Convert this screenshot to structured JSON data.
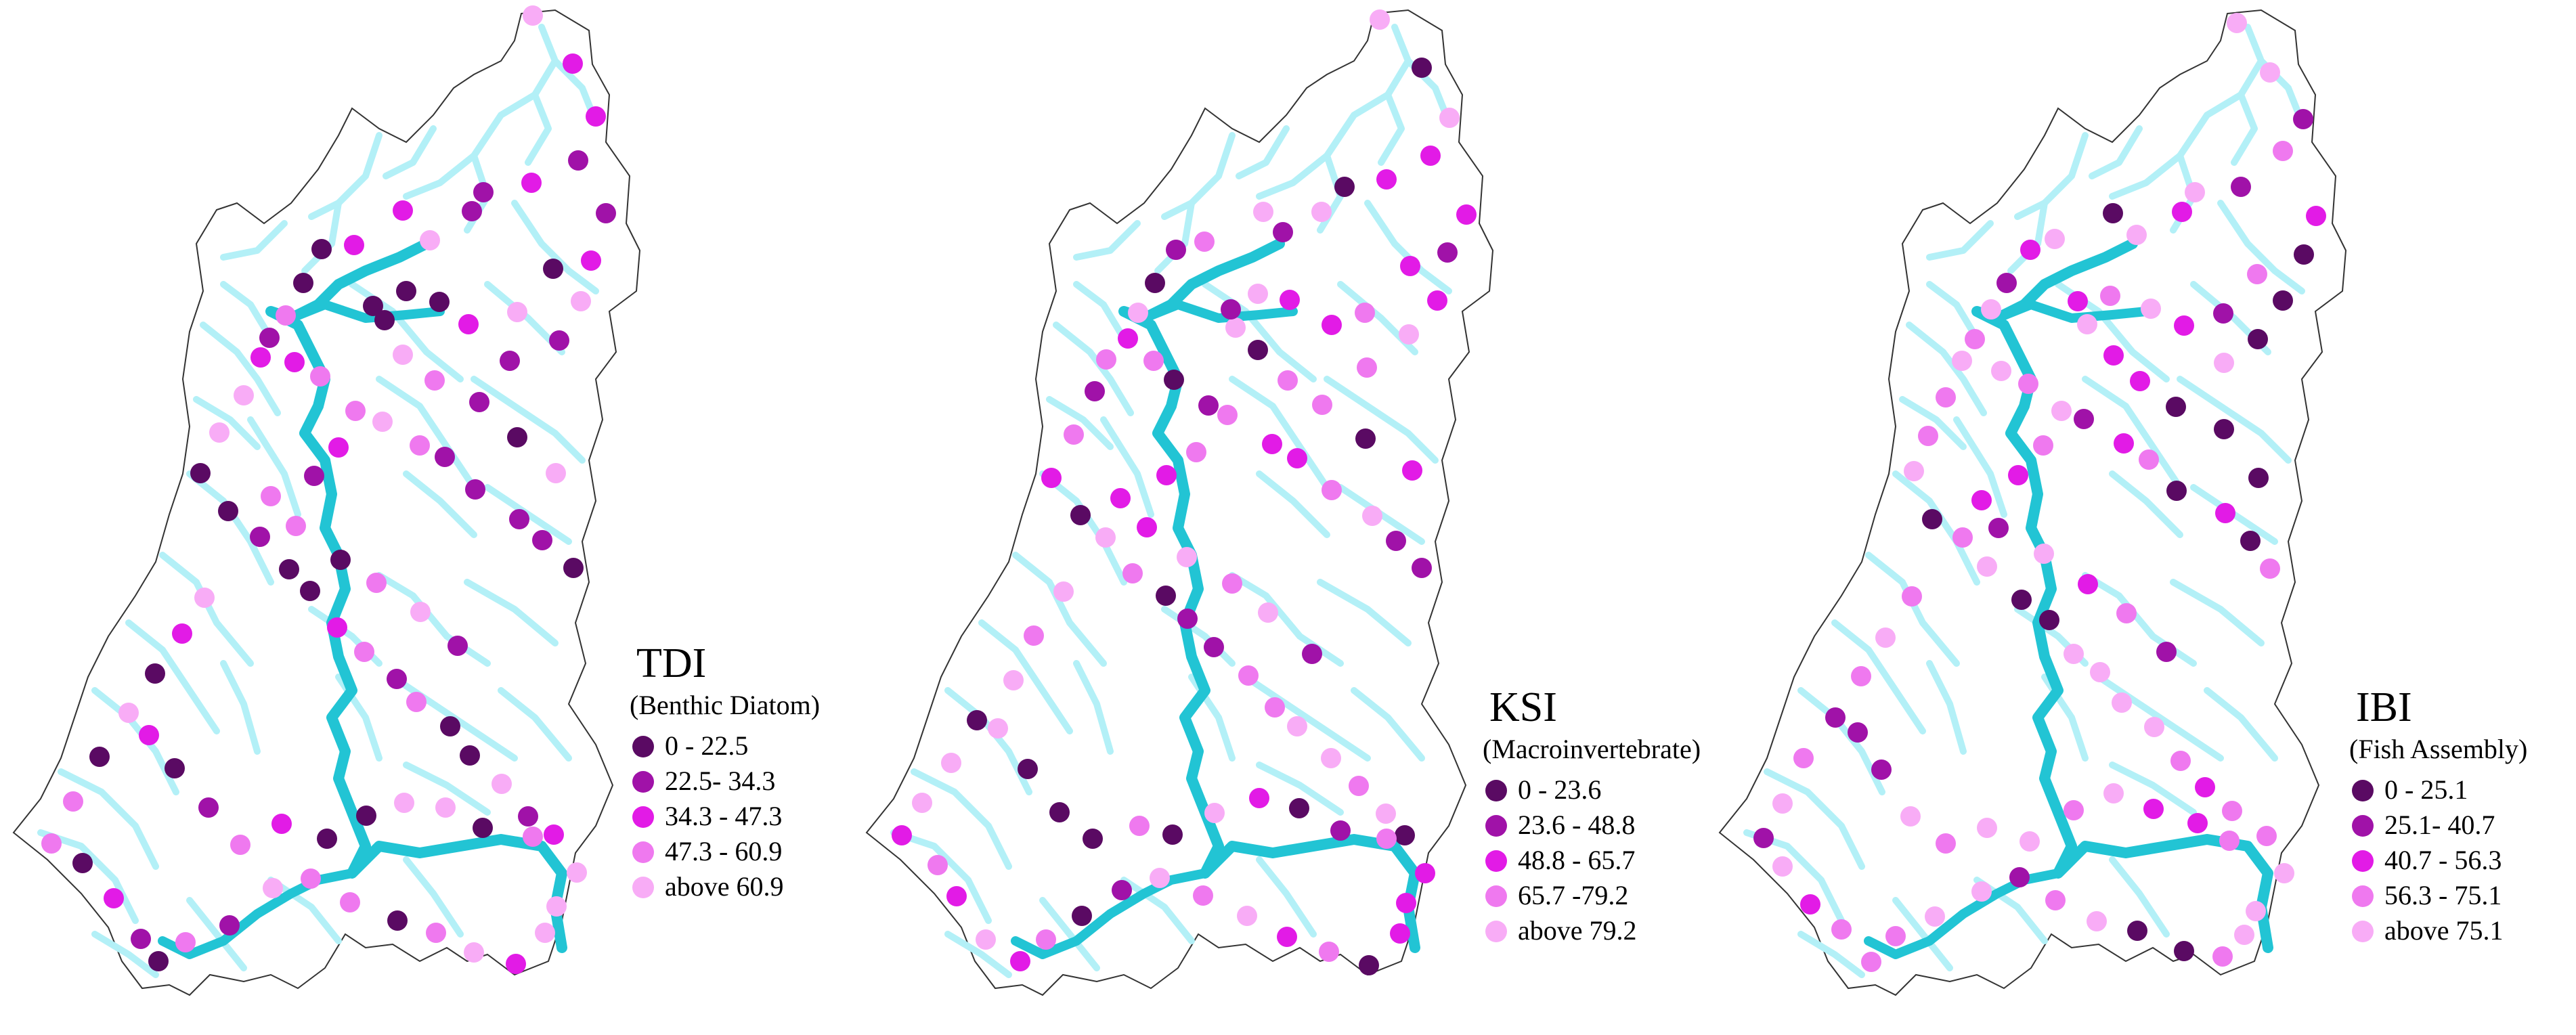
{
  "colors": {
    "class1": "#5a0a63",
    "class2": "#a012a8",
    "class3": "#e21be6",
    "class4": "#ef79ef",
    "class5": "#f8acf6",
    "stream": "#b3f0f7",
    "main_river": "#22c4d4",
    "boundary": "#333333"
  },
  "panels": [
    {
      "id": "tdi",
      "title": "TDI",
      "subtitle": "(Benthic Diatom)",
      "legend": [
        {
          "label": "0 - 22.5",
          "class": "class1"
        },
        {
          "label": "22.5- 34.3",
          "class": "class2"
        },
        {
          "label": "34.3 - 47.3",
          "class": "class3"
        },
        {
          "label": "47.3 - 60.9",
          "class": "class4"
        },
        {
          "label": "above 60.9",
          "class": "class5"
        }
      ]
    },
    {
      "id": "ksi",
      "title": "KSI",
      "subtitle": "(Macroinvertebrate)",
      "legend": [
        {
          "label": "0 - 23.6",
          "class": "class1"
        },
        {
          "label": "23.6 - 48.8",
          "class": "class2"
        },
        {
          "label": "48.8 - 65.7",
          "class": "class3"
        },
        {
          "label": "65.7 -79.2",
          "class": "class4"
        },
        {
          "label": "above 79.2",
          "class": "class5"
        }
      ]
    },
    {
      "id": "ibi",
      "title": "IBI",
      "subtitle": "(Fish Assembly)",
      "legend": [
        {
          "label": "0 - 25.1",
          "class": "class1"
        },
        {
          "label": "25.1- 40.7",
          "class": "class2"
        },
        {
          "label": "40.7 - 56.3",
          "class": "class3"
        },
        {
          "label": "56.3 - 75.1",
          "class": "class4"
        },
        {
          "label": "above 75.1",
          "class": "class5"
        }
      ]
    }
  ]
}
